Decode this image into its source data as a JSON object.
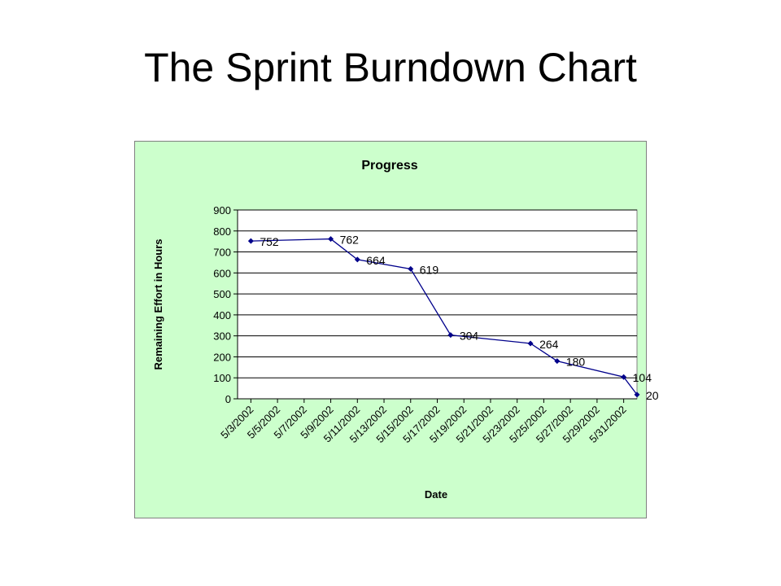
{
  "slide": {
    "title": "The Sprint Burndown Chart"
  },
  "chart_data": {
    "type": "line",
    "title": "Progress",
    "xlabel": "Date",
    "ylabel": "Remaining Effort in Hours",
    "ylim": [
      0,
      900
    ],
    "yticks": [
      0,
      100,
      200,
      300,
      400,
      500,
      600,
      700,
      800,
      900
    ],
    "x_tick_labels": [
      "5/3/2002",
      "5/5/2002",
      "5/7/2002",
      "5/9/2002",
      "5/11/2002",
      "5/13/2002",
      "5/15/2002",
      "5/17/2002",
      "5/19/2002",
      "5/21/2002",
      "5/23/2002",
      "5/25/2002",
      "5/27/2002",
      "5/29/2002",
      "5/31/2002"
    ],
    "xlim": [
      "5/2/2002",
      "6/1/2002"
    ],
    "grid": true,
    "colors": {
      "line": "#00008b",
      "background": "#ccffcc",
      "plot_background": "#ffffff",
      "grid": "#000000"
    },
    "series": [
      {
        "points": [
          {
            "x": "5/3/2002",
            "y": 752
          },
          {
            "x": "5/9/2002",
            "y": 762
          },
          {
            "x": "5/11/2002",
            "y": 664
          },
          {
            "x": "5/15/2002",
            "y": 619
          },
          {
            "x": "5/18/2002",
            "y": 304
          },
          {
            "x": "5/24/2002",
            "y": 264
          },
          {
            "x": "5/26/2002",
            "y": 180
          },
          {
            "x": "5/31/2002",
            "y": 104
          },
          {
            "x": "6/1/2002",
            "y": 20
          }
        ],
        "labels": [
          "752",
          "762",
          "664",
          "619",
          "304",
          "264",
          "180",
          "104",
          "20"
        ]
      }
    ]
  }
}
